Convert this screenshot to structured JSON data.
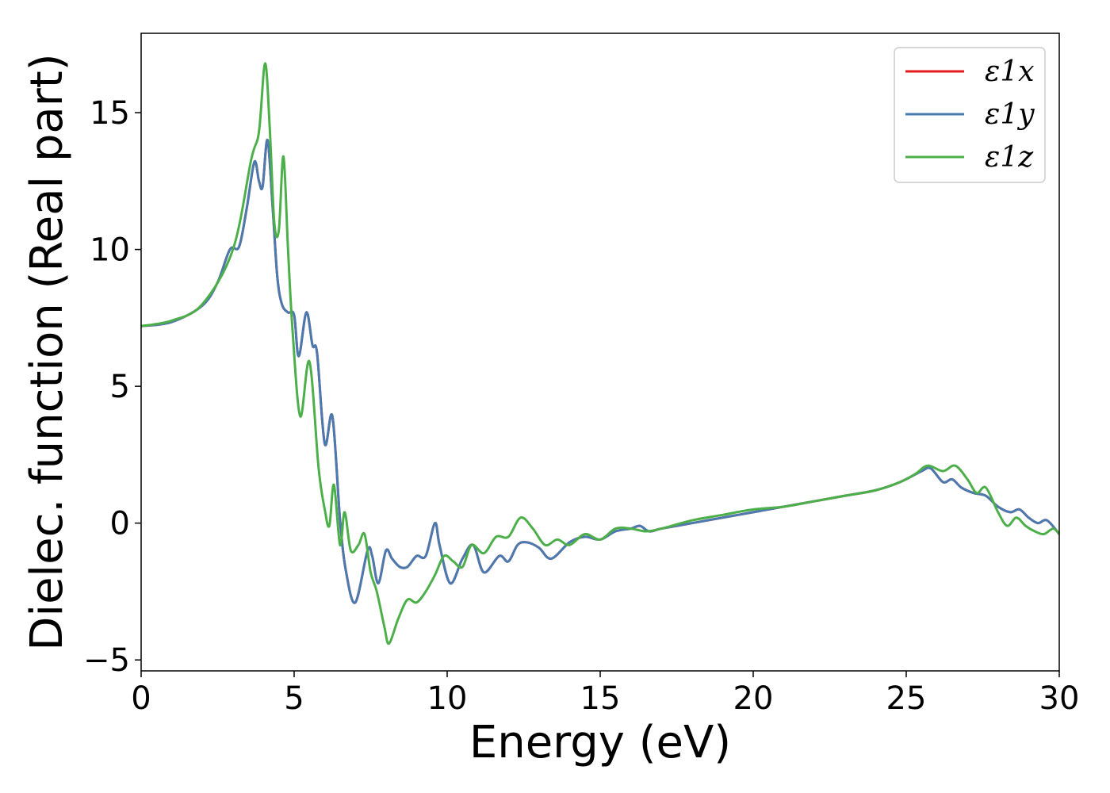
{
  "chart_data": {
    "type": "line",
    "xlabel": "Energy (eV)",
    "ylabel": "Dielec. function (Real part)",
    "xlim": [
      0,
      30
    ],
    "ylim": [
      -5.4,
      17.9
    ],
    "xticks": [
      0,
      5,
      10,
      15,
      20,
      25,
      30
    ],
    "yticks": [
      -5,
      0,
      5,
      10,
      15
    ],
    "xtick_labels": [
      "0",
      "5",
      "10",
      "15",
      "20",
      "25",
      "30"
    ],
    "ytick_labels": [
      "−5",
      "0",
      "5",
      "10",
      "15"
    ],
    "grid": false,
    "legend_position": "top-right",
    "series": [
      {
        "name": "ε1x",
        "color": "#e41a1c",
        "x": [
          0,
          1,
          2,
          2.5,
          2.9,
          3.2,
          3.45,
          3.7,
          3.85,
          3.97,
          4.13,
          4.3,
          4.45,
          4.6,
          4.8,
          5.0,
          5.15,
          5.4,
          5.6,
          5.75,
          6.0,
          6.25,
          6.5,
          6.7,
          7.0,
          7.4,
          7.55,
          7.75,
          8.0,
          8.2,
          8.45,
          8.7,
          9.0,
          9.3,
          9.6,
          9.75,
          10.1,
          10.5,
          10.85,
          11.2,
          11.7,
          12.0,
          12.3,
          12.6,
          13.0,
          13.4,
          14.0,
          14.5,
          15.0,
          15.5,
          16.0,
          16.3,
          16.6,
          17.0,
          18.0,
          19.0,
          20.0,
          21.0,
          22.0,
          23.0,
          24.0,
          24.8,
          25.5,
          25.8,
          26.2,
          26.5,
          26.8,
          27.2,
          27.6,
          28.0,
          28.4,
          28.7,
          29.0,
          29.3,
          29.6,
          30.0
        ],
        "y": [
          7.2,
          7.35,
          7.95,
          8.8,
          10.0,
          10.1,
          11.5,
          13.2,
          12.5,
          12.3,
          14.0,
          11.5,
          9.0,
          8.0,
          7.7,
          7.6,
          6.1,
          7.7,
          6.5,
          6.2,
          2.9,
          3.9,
          0.1,
          -1.8,
          -2.9,
          -1.0,
          -1.2,
          -2.2,
          -1.0,
          -1.3,
          -1.6,
          -1.6,
          -1.2,
          -1.2,
          0.0,
          -0.8,
          -2.2,
          -1.3,
          -0.8,
          -1.8,
          -1.2,
          -1.4,
          -0.8,
          -0.7,
          -0.9,
          -1.3,
          -0.7,
          -0.5,
          -0.6,
          -0.3,
          -0.2,
          -0.1,
          -0.3,
          -0.2,
          0.0,
          0.2,
          0.4,
          0.6,
          0.8,
          1.0,
          1.2,
          1.5,
          1.9,
          2.0,
          1.5,
          1.6,
          1.3,
          1.1,
          1.0,
          0.6,
          0.4,
          0.5,
          0.2,
          0.0,
          0.1,
          -0.4
        ]
      },
      {
        "name": "ε1y",
        "color": "#4a7bb0",
        "x": [
          0,
          1,
          2,
          2.5,
          2.9,
          3.2,
          3.45,
          3.7,
          3.85,
          3.97,
          4.13,
          4.3,
          4.45,
          4.6,
          4.8,
          5.0,
          5.15,
          5.4,
          5.6,
          5.75,
          6.0,
          6.25,
          6.5,
          6.7,
          7.0,
          7.4,
          7.55,
          7.75,
          8.0,
          8.2,
          8.45,
          8.7,
          9.0,
          9.3,
          9.6,
          9.75,
          10.1,
          10.5,
          10.85,
          11.2,
          11.7,
          12.0,
          12.3,
          12.6,
          13.0,
          13.4,
          14.0,
          14.5,
          15.0,
          15.5,
          16.0,
          16.3,
          16.6,
          17.0,
          18.0,
          19.0,
          20.0,
          21.0,
          22.0,
          23.0,
          24.0,
          24.8,
          25.5,
          25.8,
          26.2,
          26.5,
          26.8,
          27.2,
          27.6,
          28.0,
          28.4,
          28.7,
          29.0,
          29.3,
          29.6,
          30.0
        ],
        "y": [
          7.2,
          7.35,
          7.95,
          8.8,
          10.0,
          10.1,
          11.5,
          13.2,
          12.5,
          12.3,
          14.0,
          11.5,
          9.0,
          8.0,
          7.7,
          7.6,
          6.1,
          7.7,
          6.5,
          6.2,
          2.9,
          3.9,
          0.1,
          -1.8,
          -2.9,
          -1.0,
          -1.2,
          -2.2,
          -1.0,
          -1.3,
          -1.6,
          -1.6,
          -1.2,
          -1.2,
          0.0,
          -0.8,
          -2.2,
          -1.3,
          -0.8,
          -1.8,
          -1.2,
          -1.4,
          -0.8,
          -0.7,
          -0.9,
          -1.3,
          -0.7,
          -0.5,
          -0.6,
          -0.3,
          -0.2,
          -0.1,
          -0.3,
          -0.2,
          0.0,
          0.2,
          0.4,
          0.6,
          0.8,
          1.0,
          1.2,
          1.5,
          1.9,
          2.0,
          1.5,
          1.6,
          1.3,
          1.1,
          1.0,
          0.6,
          0.4,
          0.5,
          0.2,
          0.0,
          0.1,
          -0.4
        ]
      },
      {
        "name": "ε1z",
        "color": "#4daf4a",
        "x": [
          0,
          1,
          2,
          3.0,
          3.6,
          3.85,
          4.05,
          4.2,
          4.35,
          4.5,
          4.65,
          4.8,
          4.95,
          5.2,
          5.5,
          5.8,
          6.0,
          6.15,
          6.3,
          6.5,
          6.65,
          6.85,
          7.1,
          7.3,
          7.5,
          7.7,
          7.95,
          8.1,
          8.4,
          8.7,
          9.0,
          9.3,
          9.6,
          9.9,
          10.2,
          10.5,
          10.8,
          11.2,
          11.6,
          12.0,
          12.4,
          12.8,
          13.2,
          13.6,
          14.0,
          14.5,
          15.0,
          15.5,
          16.0,
          16.5,
          17.0,
          18.0,
          19.0,
          20.0,
          21.0,
          22.0,
          23.0,
          24.0,
          24.8,
          25.3,
          25.7,
          26.2,
          26.6,
          27.0,
          27.3,
          27.6,
          28.0,
          28.3,
          28.6,
          28.9,
          29.2,
          29.5,
          29.8,
          30.0
        ],
        "y": [
          7.2,
          7.4,
          8.0,
          10.0,
          13.3,
          14.3,
          16.8,
          14.5,
          11.0,
          10.7,
          13.4,
          10.0,
          7.0,
          3.9,
          5.9,
          2.0,
          0.5,
          -0.1,
          1.4,
          -0.8,
          0.4,
          -1.0,
          -0.8,
          -0.4,
          -1.8,
          -2.5,
          -3.8,
          -4.4,
          -3.5,
          -2.8,
          -2.9,
          -2.5,
          -1.9,
          -1.2,
          -1.4,
          -1.6,
          -0.8,
          -1.1,
          -0.5,
          -0.5,
          0.2,
          -0.2,
          -0.8,
          -0.6,
          -0.8,
          -0.4,
          -0.6,
          -0.2,
          -0.2,
          -0.3,
          -0.2,
          0.1,
          0.3,
          0.5,
          0.6,
          0.8,
          1.0,
          1.2,
          1.5,
          1.8,
          2.1,
          1.9,
          2.1,
          1.6,
          1.1,
          1.3,
          0.4,
          -0.1,
          0.2,
          -0.1,
          -0.3,
          -0.4,
          -0.2,
          -0.4
        ]
      }
    ]
  }
}
